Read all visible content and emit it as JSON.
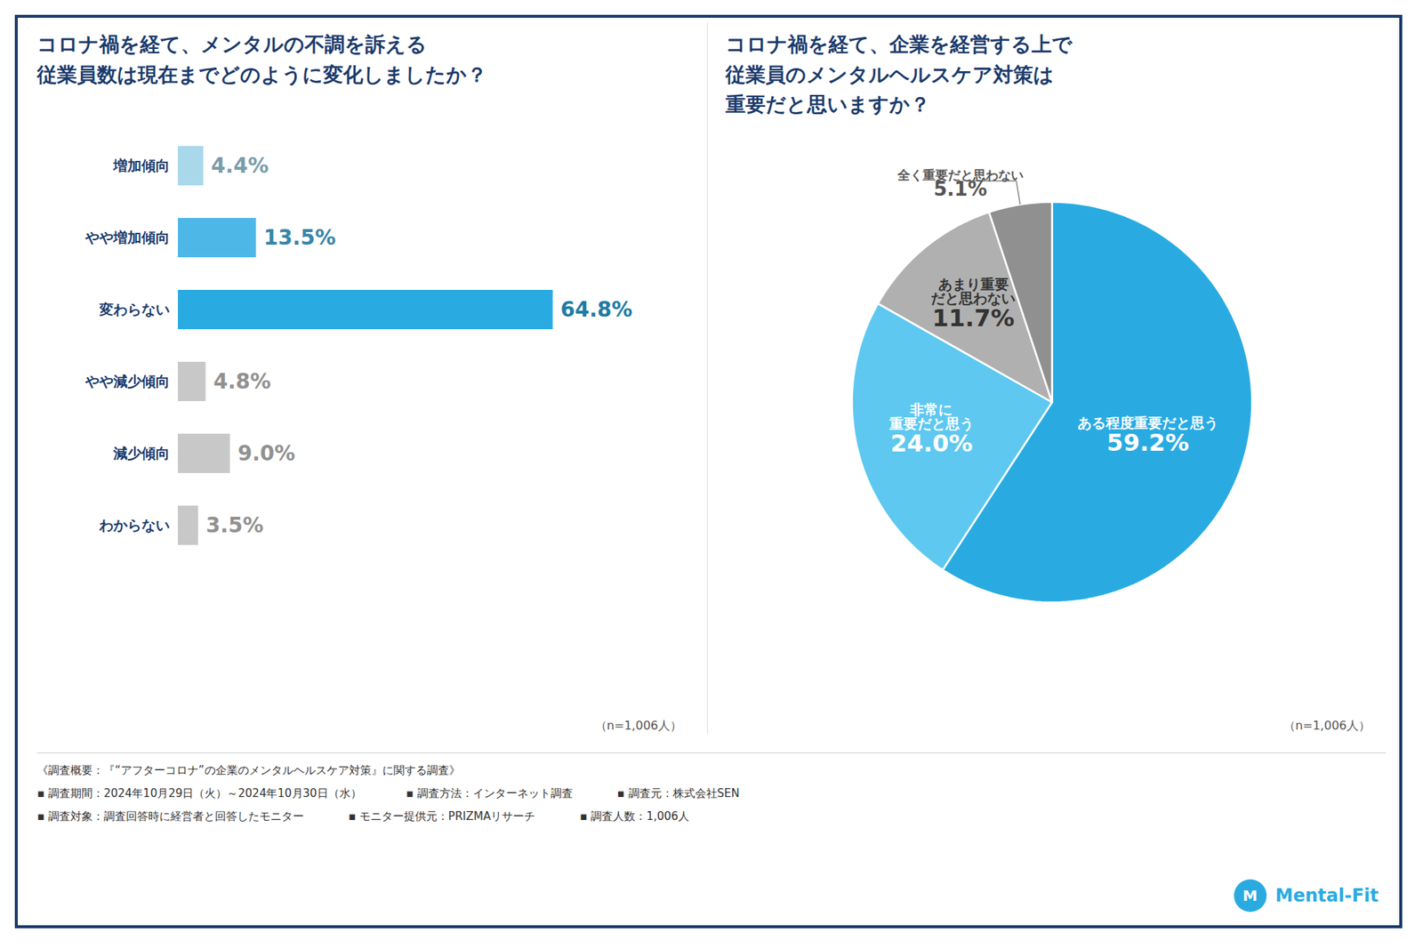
{
  "chart_data": [
    {
      "type": "bar",
      "orientation": "horizontal",
      "title": "コロナ禍を経て、メンタルの不調を訴える\n従業員数は現在までどのように変化しましたか？",
      "categories": [
        "増加傾向",
        "やや増加傾向",
        "変わらない",
        "やや減少傾向",
        "減少傾向",
        "わからない"
      ],
      "values": [
        4.4,
        13.5,
        64.8,
        4.8,
        9.0,
        3.5
      ],
      "value_labels": [
        "4.4%",
        "13.5%",
        "64.8%",
        "4.8%",
        "9.0%",
        "3.5%"
      ],
      "colors": [
        "#a8d8ea",
        "#4db8e8",
        "#29abe2",
        "#c8c8c8",
        "#c8c8c8",
        "#c8c8c8"
      ],
      "xlim": [
        0,
        82
      ],
      "tick_labels": "y",
      "grid": false,
      "data_labels": true,
      "annotations": [
        "（n=1,006人）"
      ]
    },
    {
      "type": "pie",
      "title": "コロナ禍を経て、企業を経営する上で\n従業員のメンタルヘルスケア対策は\n重要だと思いますか？",
      "categories": [
        "ある程度重要だと思う",
        "非常に\n重要だと思う",
        "あまり重要\nだと思わない",
        "全く重要だと思わない"
      ],
      "values": [
        59.2,
        24.0,
        11.7,
        5.1
      ],
      "value_labels": [
        "59.2%",
        "24.0%",
        "11.7%",
        "5.1%"
      ],
      "colors": [
        "#29abe2",
        "#5ec8f0",
        "#b0b0b0",
        "#909090"
      ],
      "data_labels": true,
      "annotations": [
        "（n=1,006人）",
        "《調査概要：『“アフターコロナ”の企業のメンタルヘルスケア対策』に関する調査》",
        "▪ 調査期間：2024年10月29日（火）～2024年10月30日（水）",
        "▪ 調査方法：インターネット調査",
        "▪ 調査元：株式会社SEN",
        "▪ 調査対象：調査回答時に経営者と回答したモニター",
        "▪ モニター提供元：PRIZMAリサーチ",
        "▪ 調査人数：1,006人",
        "M",
        "Mental-Fit"
      ]
    }
  ]
}
